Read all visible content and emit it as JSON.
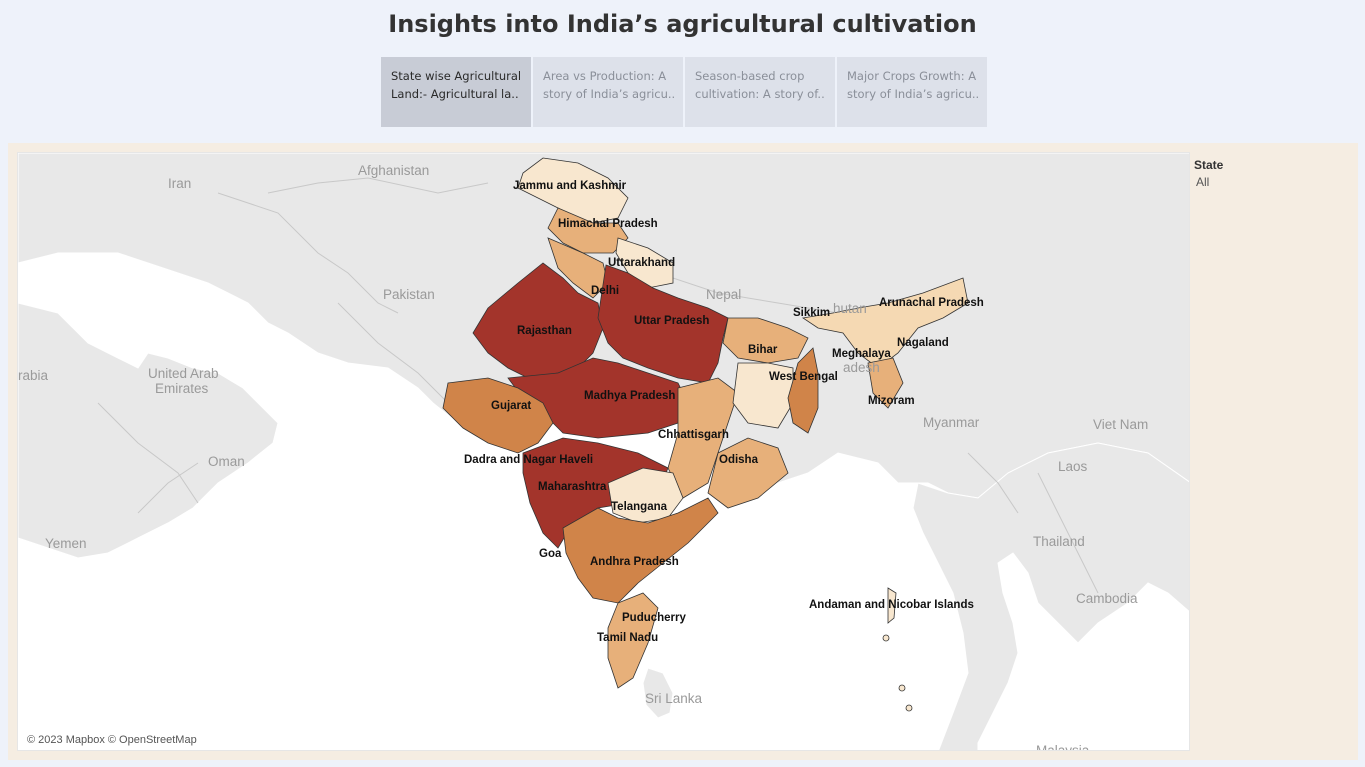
{
  "title": "Insights into India’s agricultural cultivation",
  "tabs": [
    {
      "line1": "State wise Agricultural",
      "line2": "Land:- Agricultural la.."
    },
    {
      "line1": "Area vs Production: A",
      "line2": "story of India’s agricu.."
    },
    {
      "line1": "Season-based crop",
      "line2": "cultivation: A story of.."
    },
    {
      "line1": "Major Crops Growth: A",
      "line2": "story of India’s agricu.."
    }
  ],
  "filter": {
    "label": "State",
    "value": "All"
  },
  "map": {
    "attribution": "© 2023 Mapbox © OpenStreetMap",
    "colors": {
      "darkest": "#a3342b",
      "dark": "#d08449",
      "medium": "#e7b07a",
      "light": "#f5d9b3",
      "lightest": "#f8e7cf",
      "land": "#e8e8e8",
      "water": "#ffffff"
    },
    "region_labels": {
      "iran": "Iran",
      "afghanistan": "Afghanistan",
      "pakistan": "Pakistan",
      "nepal": "Nepal",
      "bhutan": "hutan",
      "bangladesh": "adesh",
      "myanmar": "Myanmar",
      "vietnam": "Viet Nam",
      "laos": "Laos",
      "thailand": "Thailand",
      "cambodia": "Cambodia",
      "oman": "Oman",
      "uae_line1": "United Arab",
      "uae_line2": "Emirates",
      "arabia": "rabia",
      "yemen": "Yemen",
      "srilanka": "Sri Lanka",
      "malaysia": "Malaysia"
    },
    "states": {
      "jammu_kashmir": "Jammu and Kashmir",
      "himachal": "Himachal Pradesh",
      "uttarakhand": "Uttarakhand",
      "delhi": "Delhi",
      "rajasthan": "Rajasthan",
      "uttar_pradesh": "Uttar Pradesh",
      "bihar": "Bihar",
      "sikkim": "Sikkim",
      "arunachal": "Arunachal Pradesh",
      "nagaland": "Nagaland",
      "meghalaya": "Meghalaya",
      "west_bengal": "West Bengal",
      "mizoram": "Mizoram",
      "gujarat": "Gujarat",
      "madhya_pradesh": "Madhya Pradesh",
      "chhattisgarh": "Chhattisgarh",
      "odisha": "Odisha",
      "dadra": "Dadra and Nagar Haveli",
      "maharashtra": "Maharashtra",
      "telangana": "Telangana",
      "goa": "Goa",
      "andhra": "Andhra Pradesh",
      "puducherry": "Puducherry",
      "tamil_nadu": "Tamil Nadu",
      "andaman": "Andaman and Nicobar Islands"
    }
  }
}
